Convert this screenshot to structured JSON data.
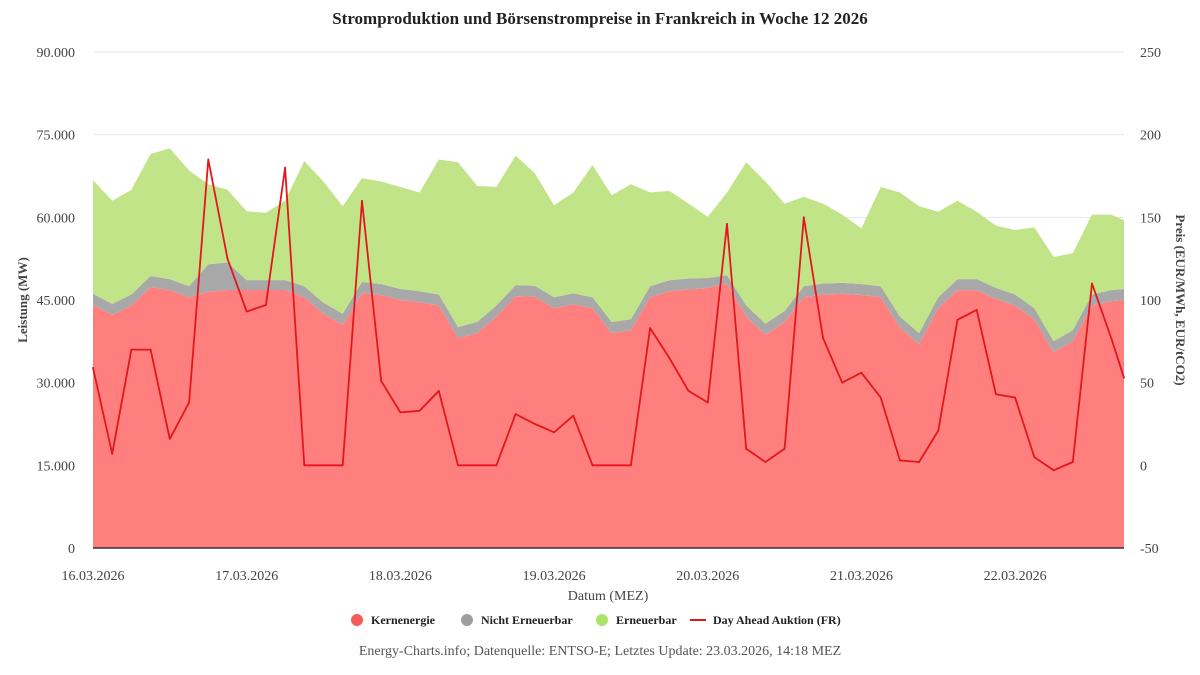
{
  "chart_data": {
    "type": "area",
    "title": "Stromproduktion und Börsenstrompreise in Frankreich in Woche 12 2026",
    "xlabel": "Datum (MEZ)",
    "ylabel": "Leistung (MW)",
    "y2label": "Preis (EUR/MWh, EUR/tCO2)",
    "ylim": [
      0,
      90000
    ],
    "y2lim": [
      -50,
      250
    ],
    "yticks": [
      "0",
      "15.000",
      "30.000",
      "45.000",
      "60.000",
      "75.000",
      "90.000"
    ],
    "ytick_values": [
      0,
      15000,
      30000,
      45000,
      60000,
      75000,
      90000
    ],
    "y2ticks": [
      "-50",
      "0",
      "50",
      "100",
      "150",
      "200",
      "250"
    ],
    "y2tick_values": [
      -50,
      0,
      50,
      100,
      150,
      200,
      250
    ],
    "xticks": [
      "16.03.2026",
      "17.03.2026",
      "18.03.2026",
      "19.03.2026",
      "20.03.2026",
      "21.03.2026",
      "22.03.2026"
    ],
    "xtick_values": [
      "2026-03-16T00:00",
      "2026-03-17T00:00",
      "2026-03-18T00:00",
      "2026-03-19T00:00",
      "2026-03-20T00:00",
      "2026-03-21T00:00",
      "2026-03-22T00:00"
    ],
    "xlim": [
      "2026-03-16T00:00",
      "2026-03-22T17:00"
    ],
    "grid": "horizontal",
    "legend_position": "bottom",
    "stacked": true,
    "x": [
      "2026-03-16T00:00",
      "2026-03-16T03:00",
      "2026-03-16T06:00",
      "2026-03-16T09:00",
      "2026-03-16T12:00",
      "2026-03-16T15:00",
      "2026-03-16T18:00",
      "2026-03-16T21:00",
      "2026-03-17T00:00",
      "2026-03-17T03:00",
      "2026-03-17T06:00",
      "2026-03-17T09:00",
      "2026-03-17T12:00",
      "2026-03-17T15:00",
      "2026-03-17T18:00",
      "2026-03-17T21:00",
      "2026-03-18T00:00",
      "2026-03-18T03:00",
      "2026-03-18T06:00",
      "2026-03-18T09:00",
      "2026-03-18T12:00",
      "2026-03-18T15:00",
      "2026-03-18T18:00",
      "2026-03-18T21:00",
      "2026-03-19T00:00",
      "2026-03-19T03:00",
      "2026-03-19T06:00",
      "2026-03-19T09:00",
      "2026-03-19T12:00",
      "2026-03-19T15:00",
      "2026-03-19T18:00",
      "2026-03-19T21:00",
      "2026-03-20T00:00",
      "2026-03-20T03:00",
      "2026-03-20T06:00",
      "2026-03-20T09:00",
      "2026-03-20T12:00",
      "2026-03-20T15:00",
      "2026-03-20T18:00",
      "2026-03-20T21:00",
      "2026-03-21T00:00",
      "2026-03-21T03:00",
      "2026-03-21T06:00",
      "2026-03-21T09:00",
      "2026-03-21T12:00",
      "2026-03-21T15:00",
      "2026-03-21T18:00",
      "2026-03-21T21:00",
      "2026-03-22T00:00",
      "2026-03-22T03:00",
      "2026-03-22T06:00",
      "2026-03-22T09:00",
      "2026-03-22T12:00",
      "2026-03-22T15:00",
      "2026-03-22T17:00"
    ],
    "series": [
      {
        "name": "Kernenergie",
        "type": "area",
        "axis": "left",
        "color": "#ff7f7f",
        "legend_color": "#f45b5b",
        "values": [
          44100,
          42300,
          44000,
          47360,
          46800,
          45500,
          46500,
          46810,
          46810,
          46810,
          46810,
          45500,
          42500,
          40500,
          46270,
          45910,
          45000,
          44600,
          44000,
          38100,
          39000,
          42000,
          45700,
          45600,
          43500,
          44200,
          43500,
          39000,
          39500,
          45500,
          46600,
          46900,
          47200,
          48000,
          42000,
          38700,
          41000,
          45500,
          46000,
          46100,
          45900,
          45500,
          40000,
          37000,
          43500,
          46800,
          46800,
          45200,
          44000,
          41500,
          35500,
          37500,
          44000,
          44800,
          45000
        ]
      },
      {
        "name": "Nicht Erneuerbar",
        "type": "area",
        "axis": "left",
        "color": "#a8a8a8",
        "legend_color": "#a09d9d",
        "values": [
          2000,
          2000,
          2000,
          2000,
          2000,
          2000,
          5000,
          5000,
          1800,
          1800,
          1800,
          2000,
          2000,
          2000,
          2000,
          2000,
          2000,
          2000,
          2000,
          2000,
          2000,
          2000,
          2000,
          2000,
          2000,
          2000,
          2000,
          2000,
          2000,
          2000,
          2000,
          2000,
          1800,
          1500,
          2000,
          2000,
          2000,
          2000,
          2000,
          2000,
          2000,
          2000,
          2000,
          2000,
          2000,
          2000,
          2000,
          2000,
          2000,
          2000,
          2000,
          2000,
          2000,
          2000,
          2000
        ]
      },
      {
        "name": "Erneuerbar",
        "type": "area",
        "axis": "left",
        "color": "#c1e488",
        "legend_color": "#aee36a",
        "values": [
          20670,
          18700,
          19000,
          22140,
          23700,
          21000,
          14500,
          13190,
          12490,
          12190,
          14390,
          22700,
          22000,
          19500,
          18830,
          18590,
          18500,
          17900,
          24500,
          29900,
          24700,
          21500,
          23500,
          20400,
          16700,
          18300,
          24000,
          23000,
          24500,
          17000,
          16200,
          13600,
          11100,
          15000,
          26000,
          25800,
          19500,
          16200,
          14500,
          12400,
          10100,
          18000,
          22500,
          23000,
          15500,
          14200,
          12200,
          11300,
          11700,
          14700,
          15300,
          14000,
          14500,
          13700,
          12500
        ]
      },
      {
        "name": "Day Ahead Auktion (FR)",
        "type": "line",
        "axis": "right",
        "color": "#e3171b",
        "values": [
          59,
          7,
          70,
          70,
          16,
          38,
          185,
          125,
          93,
          97,
          180,
          0,
          0,
          0,
          160,
          51,
          32,
          33,
          45,
          0,
          0,
          0,
          31,
          25,
          20,
          30,
          0,
          0,
          0,
          83,
          65,
          45,
          38,
          146,
          10,
          2,
          10,
          150,
          77,
          50,
          56,
          41,
          3,
          2,
          21,
          88,
          94,
          43,
          41,
          5,
          -3,
          2,
          110,
          77,
          53
        ]
      }
    ]
  },
  "credit": "Energy-Charts.info; Datenquelle: ENTSO-E; Letztes Update: 23.03.2026, 14:18 MEZ"
}
